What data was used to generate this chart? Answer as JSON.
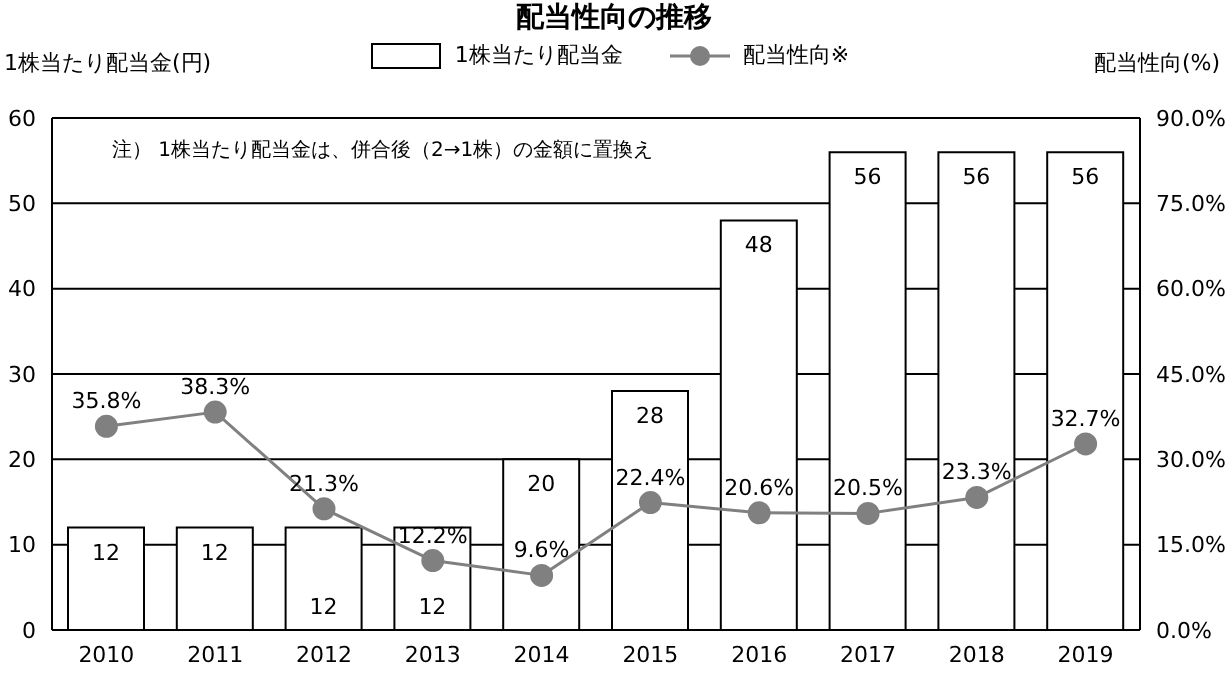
{
  "chart_data": {
    "type": "bar",
    "title": "配当性向の推移",
    "ylabel": "1株当たり配当金(円)",
    "y2label": "配当性向(%)",
    "annotations": [
      "注） 1株当たり配当金は、併合後（2→1株）の金額に置換え"
    ],
    "categories": [
      "2010",
      "2011",
      "2012",
      "2013",
      "2014",
      "2015",
      "2016",
      "2017",
      "2018",
      "2019"
    ],
    "series": [
      {
        "name": "1株当たり配当金",
        "color": "#ffffff",
        "values": [
          12,
          12,
          12,
          12,
          20,
          28,
          48,
          56,
          56,
          56
        ],
        "value_labels": [
          "12",
          "12",
          "12",
          "12",
          "20",
          "28",
          "48",
          "56",
          "56",
          "56"
        ]
      },
      {
        "name": "配当性向※",
        "type": "line",
        "axis": "y2",
        "color": "#808080",
        "values": [
          35.8,
          38.3,
          21.3,
          12.2,
          9.6,
          22.4,
          20.6,
          20.5,
          23.3,
          32.7
        ],
        "value_labels": [
          "35.8%",
          "38.3%",
          "21.3%",
          "12.2%",
          "9.6%",
          "22.4%",
          "20.6%",
          "20.5%",
          "23.3%",
          "32.7%"
        ]
      }
    ],
    "ylim": [
      0,
      60
    ],
    "yticks": [
      0,
      10,
      20,
      30,
      40,
      50,
      60
    ],
    "y2lim": [
      0,
      90
    ],
    "y2ticks": [
      {
        "value": 0,
        "label": "0.0%"
      },
      {
        "value": 15,
        "label": "15.0%"
      },
      {
        "value": 30,
        "label": "30.0%"
      },
      {
        "value": 45,
        "label": "45.0%"
      },
      {
        "value": 60,
        "label": "60.0%"
      },
      {
        "value": 75,
        "label": "75.0%"
      },
      {
        "value": 90,
        "label": "90.0%"
      }
    ],
    "grid": "y",
    "legend": "top",
    "marker": "circle",
    "line_style": "solid"
  }
}
